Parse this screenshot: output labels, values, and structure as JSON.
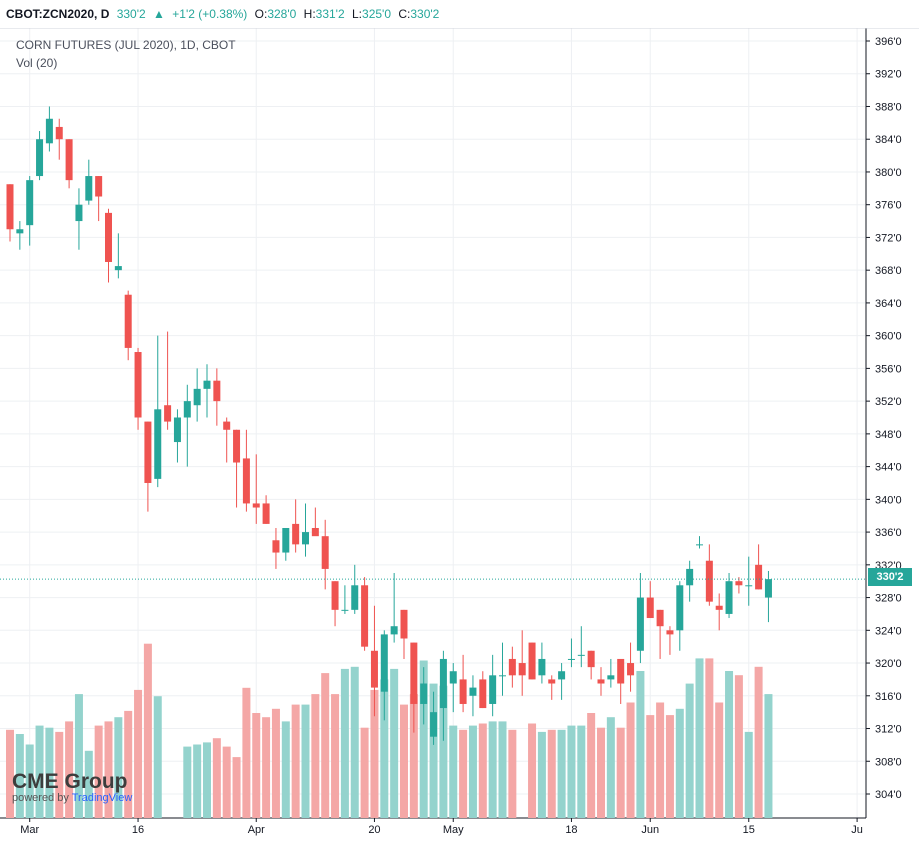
{
  "header": {
    "symbol": "CBOT:ZCN2020, D",
    "last": "330'2",
    "change_arrow": "▲",
    "change": "+1'2 (+0.38%)",
    "o_label": "O:",
    "o_value": "328'0",
    "h_label": "H:",
    "h_value": "331'2",
    "l_label": "L:",
    "l_value": "325'0",
    "c_label": "C:",
    "c_value": "330'2"
  },
  "legend": {
    "title": "CORN FUTURES (JUL 2020), 1D, CBOT",
    "volume": "Vol (20)"
  },
  "logo": {
    "brand": "CME Group",
    "powered": "powered by ",
    "tv": "TradingView"
  },
  "colors": {
    "up": "#26a69a",
    "down": "#ef5350",
    "up_vol": "#94d3cd",
    "down_vol": "#f4a7a6"
  },
  "chart_data": {
    "type": "candlestick",
    "title": "CORN FUTURES (JUL 2020), 1D, CBOT",
    "unit_note": "prices in cents; tick labels in eighths format",
    "ylim": [
      301,
      398
    ],
    "y_ticks": [
      "396'0",
      "392'0",
      "388'0",
      "384'0",
      "380'0",
      "376'0",
      "372'0",
      "368'0",
      "364'0",
      "360'0",
      "356'0",
      "352'0",
      "348'0",
      "344'0",
      "340'0",
      "336'0",
      "332'0",
      "328'0",
      "324'0",
      "320'0",
      "316'0",
      "312'0",
      "308'0",
      "304'0"
    ],
    "y_tick_values": [
      396,
      392,
      388,
      384,
      380,
      376,
      372,
      368,
      364,
      360,
      356,
      352,
      348,
      344,
      340,
      336,
      332,
      328,
      324,
      320,
      316,
      312,
      308,
      304
    ],
    "x_ticks": [
      {
        "label": "Mar",
        "index": 2
      },
      {
        "label": "16",
        "index": 13
      },
      {
        "label": "Apr",
        "index": 25
      },
      {
        "label": "20",
        "index": 37
      },
      {
        "label": "May",
        "index": 45
      },
      {
        "label": "18",
        "index": 57
      },
      {
        "label": "Jun",
        "index": 65
      },
      {
        "label": "15",
        "index": 75
      },
      {
        "label": "Ju",
        "index": 86
      }
    ],
    "last_price": 330.25,
    "last_price_label": "330'2",
    "volume_max": 1,
    "candles": [
      {
        "o": 378.5,
        "h": 378.5,
        "l": 371.5,
        "c": 373.0,
        "v": 0.42
      },
      {
        "o": 372.5,
        "h": 374.0,
        "l": 370.5,
        "c": 373.0,
        "v": 0.4
      },
      {
        "o": 373.5,
        "h": 379.5,
        "l": 371.0,
        "c": 379.0,
        "v": 0.35
      },
      {
        "o": 379.5,
        "h": 385.0,
        "l": 379.0,
        "c": 384.0,
        "v": 0.44
      },
      {
        "o": 383.5,
        "h": 388.0,
        "l": 382.5,
        "c": 386.5,
        "v": 0.43
      },
      {
        "o": 385.5,
        "h": 386.5,
        "l": 381.5,
        "c": 384.0,
        "v": 0.41
      },
      {
        "o": 384.0,
        "h": 384.0,
        "l": 378.0,
        "c": 379.0,
        "v": 0.46
      },
      {
        "o": 374.0,
        "h": 378.0,
        "l": 370.5,
        "c": 376.0,
        "v": 0.59
      },
      {
        "o": 376.5,
        "h": 381.5,
        "l": 376.0,
        "c": 379.5,
        "v": 0.32
      },
      {
        "o": 379.5,
        "h": 379.5,
        "l": 374.0,
        "c": 377.0,
        "v": 0.44
      },
      {
        "o": 375.0,
        "h": 375.5,
        "l": 366.5,
        "c": 369.0,
        "v": 0.46
      },
      {
        "o": 368.0,
        "h": 372.5,
        "l": 367.0,
        "c": 368.5,
        "v": 0.48
      },
      {
        "o": 365.0,
        "h": 365.5,
        "l": 357.0,
        "c": 358.5,
        "v": 0.51
      },
      {
        "o": 358.0,
        "h": 358.5,
        "l": 348.5,
        "c": 350.0,
        "v": 0.61
      },
      {
        "o": 349.5,
        "h": 349.5,
        "l": 338.5,
        "c": 342.0,
        "v": 0.83
      },
      {
        "o": 342.5,
        "h": 360.0,
        "l": 341.5,
        "c": 351.0,
        "v": 0.58
      },
      {
        "o": 351.5,
        "h": 360.5,
        "l": 348.5,
        "c": 349.5,
        "v": 0.0
      },
      {
        "o": 347.0,
        "h": 351.0,
        "l": 344.5,
        "c": 350.0,
        "v": 0.0
      },
      {
        "o": 350.0,
        "h": 354.0,
        "l": 344.0,
        "c": 352.0,
        "v": 0.34
      },
      {
        "o": 351.5,
        "h": 356.0,
        "l": 349.5,
        "c": 353.5,
        "v": 0.35
      },
      {
        "o": 353.5,
        "h": 356.5,
        "l": 350.0,
        "c": 354.5,
        "v": 0.36
      },
      {
        "o": 354.5,
        "h": 356.0,
        "l": 349.0,
        "c": 352.0,
        "v": 0.38
      },
      {
        "o": 349.5,
        "h": 350.0,
        "l": 344.5,
        "c": 348.5,
        "v": 0.34
      },
      {
        "o": 348.5,
        "h": 348.5,
        "l": 339.0,
        "c": 344.5,
        "v": 0.29
      },
      {
        "o": 345.0,
        "h": 348.5,
        "l": 338.5,
        "c": 339.5,
        "v": 0.62
      },
      {
        "o": 339.5,
        "h": 345.5,
        "l": 337.0,
        "c": 339.0,
        "v": 0.5
      },
      {
        "o": 339.5,
        "h": 340.5,
        "l": 337.0,
        "c": 337.0,
        "v": 0.48
      },
      {
        "o": 335.0,
        "h": 336.5,
        "l": 331.5,
        "c": 333.5,
        "v": 0.52
      },
      {
        "o": 333.5,
        "h": 336.5,
        "l": 332.5,
        "c": 336.5,
        "v": 0.46
      },
      {
        "o": 337.0,
        "h": 340.0,
        "l": 333.5,
        "c": 334.5,
        "v": 0.54
      },
      {
        "o": 334.5,
        "h": 339.5,
        "l": 333.0,
        "c": 336.0,
        "v": 0.54
      },
      {
        "o": 336.5,
        "h": 339.0,
        "l": 336.0,
        "c": 335.5,
        "v": 0.59
      },
      {
        "o": 335.5,
        "h": 337.5,
        "l": 329.0,
        "c": 331.5,
        "v": 0.69
      },
      {
        "o": 330.0,
        "h": 330.0,
        "l": 324.5,
        "c": 326.5,
        "v": 0.59
      },
      {
        "o": 326.5,
        "h": 329.5,
        "l": 326.0,
        "c": 326.5,
        "v": 0.71
      },
      {
        "o": 326.5,
        "h": 332.0,
        "l": 326.0,
        "c": 329.5,
        "v": 0.72
      },
      {
        "o": 329.5,
        "h": 330.5,
        "l": 321.5,
        "c": 322.0,
        "v": 0.43
      },
      {
        "o": 321.5,
        "h": 327.0,
        "l": 313.5,
        "c": 317.0,
        "v": 0.61
      },
      {
        "o": 316.5,
        "h": 324.0,
        "l": 313.0,
        "c": 323.5,
        "v": 0.66
      },
      {
        "o": 323.5,
        "h": 331.0,
        "l": 322.5,
        "c": 324.5,
        "v": 0.71
      },
      {
        "o": 326.5,
        "h": 326.5,
        "l": 320.5,
        "c": 323.0,
        "v": 0.54
      },
      {
        "o": 322.5,
        "h": 322.5,
        "l": 311.5,
        "c": 315.0,
        "v": 0.59
      },
      {
        "o": 315.0,
        "h": 319.5,
        "l": 312.5,
        "c": 317.5,
        "v": 0.75
      },
      {
        "o": 311.0,
        "h": 316.5,
        "l": 310.0,
        "c": 314.0,
        "v": 0.64
      },
      {
        "o": 314.5,
        "h": 321.5,
        "l": 310.5,
        "c": 320.5,
        "v": 0.63
      },
      {
        "o": 317.5,
        "h": 320.0,
        "l": 314.0,
        "c": 319.0,
        "v": 0.44
      },
      {
        "o": 318.0,
        "h": 321.0,
        "l": 314.0,
        "c": 315.0,
        "v": 0.42
      },
      {
        "o": 316.0,
        "h": 318.5,
        "l": 313.5,
        "c": 317.0,
        "v": 0.44
      },
      {
        "o": 318.0,
        "h": 319.0,
        "l": 314.5,
        "c": 314.5,
        "v": 0.45
      },
      {
        "o": 315.0,
        "h": 321.0,
        "l": 313.5,
        "c": 318.5,
        "v": 0.46
      },
      {
        "o": 318.5,
        "h": 322.5,
        "l": 316.0,
        "c": 318.5,
        "v": 0.46
      },
      {
        "o": 320.5,
        "h": 322.0,
        "l": 317.0,
        "c": 318.5,
        "v": 0.42
      },
      {
        "o": 320.0,
        "h": 324.0,
        "l": 316.0,
        "c": 318.5,
        "v": 0.0
      },
      {
        "o": 322.5,
        "h": 322.5,
        "l": 318.0,
        "c": 318.0,
        "v": 0.45
      },
      {
        "o": 318.5,
        "h": 322.5,
        "l": 317.5,
        "c": 320.5,
        "v": 0.41
      },
      {
        "o": 318.0,
        "h": 318.5,
        "l": 315.5,
        "c": 317.5,
        "v": 0.42
      },
      {
        "o": 318.0,
        "h": 320.0,
        "l": 315.5,
        "c": 319.0,
        "v": 0.42
      },
      {
        "o": 320.5,
        "h": 323.0,
        "l": 319.5,
        "c": 320.5,
        "v": 0.44
      },
      {
        "o": 321.0,
        "h": 324.5,
        "l": 319.5,
        "c": 321.0,
        "v": 0.44
      },
      {
        "o": 321.5,
        "h": 321.5,
        "l": 318.0,
        "c": 319.5,
        "v": 0.5
      },
      {
        "o": 318.0,
        "h": 319.5,
        "l": 316.0,
        "c": 317.5,
        "v": 0.43
      },
      {
        "o": 318.0,
        "h": 320.5,
        "l": 317.0,
        "c": 318.5,
        "v": 0.48
      },
      {
        "o": 320.5,
        "h": 320.0,
        "l": 315.0,
        "c": 317.5,
        "v": 0.43
      },
      {
        "o": 320.0,
        "h": 322.5,
        "l": 316.5,
        "c": 318.5,
        "v": 0.55
      },
      {
        "o": 321.5,
        "h": 331.0,
        "l": 320.0,
        "c": 328.0,
        "v": 0.7
      },
      {
        "o": 328.0,
        "h": 330.0,
        "l": 325.5,
        "c": 325.5,
        "v": 0.49
      },
      {
        "o": 326.5,
        "h": 326.5,
        "l": 320.5,
        "c": 324.5,
        "v": 0.55
      },
      {
        "o": 324.0,
        "h": 324.5,
        "l": 321.0,
        "c": 323.5,
        "v": 0.49
      },
      {
        "o": 324.0,
        "h": 330.0,
        "l": 321.5,
        "c": 329.5,
        "v": 0.52
      },
      {
        "o": 329.5,
        "h": 332.5,
        "l": 327.5,
        "c": 331.5,
        "v": 0.64
      },
      {
        "o": 334.5,
        "h": 335.5,
        "l": 334.0,
        "c": 334.5,
        "v": 0.76
      },
      {
        "o": 332.5,
        "h": 334.5,
        "l": 327.0,
        "c": 327.5,
        "v": 0.76
      },
      {
        "o": 327.0,
        "h": 328.5,
        "l": 324.0,
        "c": 326.5,
        "v": 0.55
      },
      {
        "o": 326.0,
        "h": 331.0,
        "l": 325.5,
        "c": 330.0,
        "v": 0.7
      },
      {
        "o": 330.0,
        "h": 330.5,
        "l": 328.5,
        "c": 329.5,
        "v": 0.68
      },
      {
        "o": 329.5,
        "h": 333.0,
        "l": 327.0,
        "c": 329.5,
        "v": 0.41
      },
      {
        "o": 332.0,
        "h": 334.5,
        "l": 329.0,
        "c": 329.0,
        "v": 0.72
      },
      {
        "o": 328.0,
        "h": 331.25,
        "l": 325.0,
        "c": 330.25,
        "v": 0.59
      }
    ]
  }
}
